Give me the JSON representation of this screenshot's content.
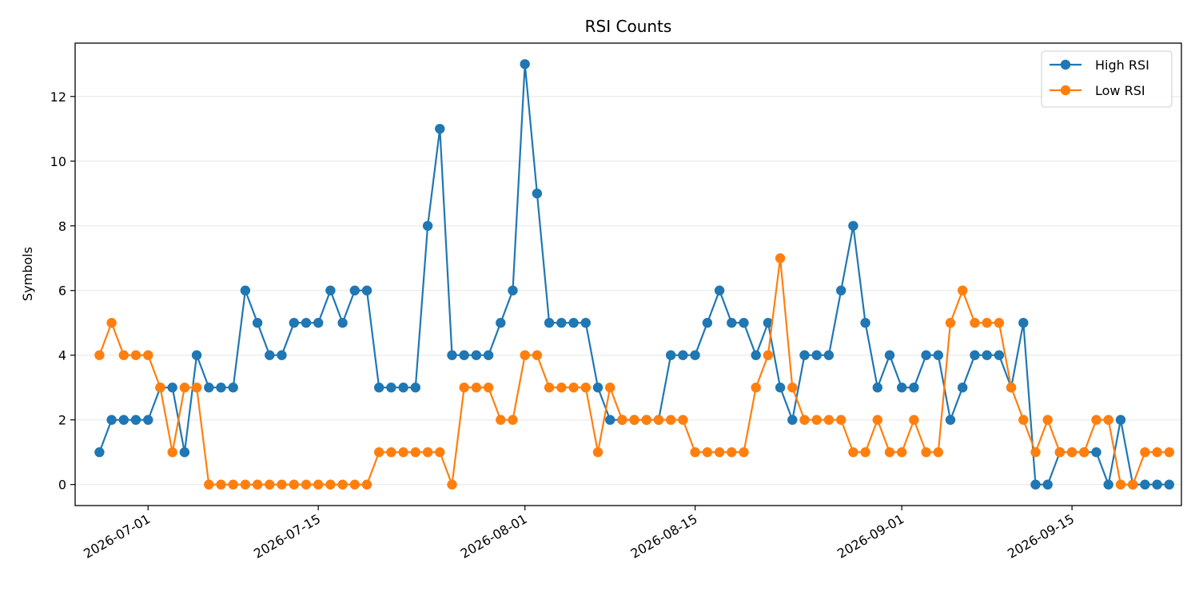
{
  "chart_data": {
    "type": "line",
    "title": "RSI Counts",
    "xlabel": "",
    "ylabel": "Symbols",
    "x_start": "2026-06-27",
    "x": [
      "2026-06-27",
      "2026-06-28",
      "2026-06-29",
      "2026-06-30",
      "2026-07-01",
      "2026-07-02",
      "2026-07-03",
      "2026-07-04",
      "2026-07-05",
      "2026-07-06",
      "2026-07-07",
      "2026-07-08",
      "2026-07-09",
      "2026-07-10",
      "2026-07-11",
      "2026-07-12",
      "2026-07-13",
      "2026-07-14",
      "2026-07-15",
      "2026-07-16",
      "2026-07-17",
      "2026-07-18",
      "2026-07-19",
      "2026-07-20",
      "2026-07-21",
      "2026-07-22",
      "2026-07-23",
      "2026-07-24",
      "2026-07-25",
      "2026-07-26",
      "2026-07-27",
      "2026-07-28",
      "2026-07-29",
      "2026-07-30",
      "2026-07-31",
      "2026-08-01",
      "2026-08-02",
      "2026-08-03",
      "2026-08-04",
      "2026-08-05",
      "2026-08-06",
      "2026-08-07",
      "2026-08-08",
      "2026-08-09",
      "2026-08-10",
      "2026-08-11",
      "2026-08-12",
      "2026-08-13",
      "2026-08-14",
      "2026-08-15",
      "2026-08-16",
      "2026-08-17",
      "2026-08-18",
      "2026-08-19",
      "2026-08-20",
      "2026-08-21",
      "2026-08-22",
      "2026-08-23",
      "2026-08-24",
      "2026-08-25",
      "2026-08-26",
      "2026-08-27",
      "2026-08-28",
      "2026-08-29",
      "2026-08-30",
      "2026-08-31",
      "2026-09-01",
      "2026-09-02",
      "2026-09-03",
      "2026-09-04",
      "2026-09-05",
      "2026-09-06",
      "2026-09-07",
      "2026-09-08",
      "2026-09-09",
      "2026-09-10",
      "2026-09-11",
      "2026-09-12",
      "2026-09-13",
      "2026-09-14",
      "2026-09-15",
      "2026-09-16",
      "2026-09-17",
      "2026-09-18",
      "2026-09-19",
      "2026-09-20",
      "2026-09-21",
      "2026-09-22",
      "2026-09-23"
    ],
    "series": [
      {
        "name": "High RSI",
        "color": "#1f77b4",
        "values": [
          1,
          2,
          2,
          2,
          2,
          3,
          3,
          1,
          4,
          3,
          3,
          3,
          6,
          5,
          4,
          4,
          5,
          5,
          5,
          6,
          5,
          6,
          6,
          3,
          3,
          3,
          3,
          8,
          11,
          4,
          4,
          4,
          4,
          5,
          6,
          13,
          9,
          5,
          5,
          5,
          5,
          3,
          2,
          2,
          2,
          2,
          2,
          4,
          4,
          4,
          5,
          6,
          5,
          5,
          4,
          5,
          3,
          2,
          4,
          4,
          4,
          6,
          8,
          5,
          3,
          4,
          3,
          3,
          4,
          4,
          2,
          3,
          4,
          4,
          4,
          3,
          5,
          0,
          0,
          1,
          1,
          1,
          1,
          0,
          2,
          0,
          0,
          0,
          0
        ]
      },
      {
        "name": "Low RSI",
        "color": "#ff7f0e",
        "values": [
          4,
          5,
          4,
          4,
          4,
          3,
          1,
          3,
          3,
          0,
          0,
          0,
          0,
          0,
          0,
          0,
          0,
          0,
          0,
          0,
          0,
          0,
          0,
          1,
          1,
          1,
          1,
          1,
          1,
          0,
          3,
          3,
          3,
          2,
          2,
          4,
          4,
          3,
          3,
          3,
          3,
          1,
          3,
          2,
          2,
          2,
          2,
          2,
          2,
          1,
          1,
          1,
          1,
          1,
          3,
          4,
          7,
          3,
          2,
          2,
          2,
          2,
          1,
          1,
          2,
          1,
          1,
          2,
          1,
          1,
          5,
          6,
          5,
          5,
          5,
          3,
          2,
          1,
          2,
          1,
          1,
          1,
          2,
          2,
          0,
          0,
          1,
          1,
          1
        ]
      }
    ],
    "x_ticks": [
      "2026-07-01",
      "2026-07-15",
      "2026-08-01",
      "2026-08-15",
      "2026-09-01",
      "2026-09-15"
    ],
    "y_ticks": [
      0,
      2,
      4,
      6,
      8,
      10,
      12
    ],
    "ylim": [
      -0.65,
      13.65
    ],
    "xlim": [
      "2026-06-25",
      "2026-09-24"
    ],
    "grid": "y",
    "legend": "top-right"
  }
}
